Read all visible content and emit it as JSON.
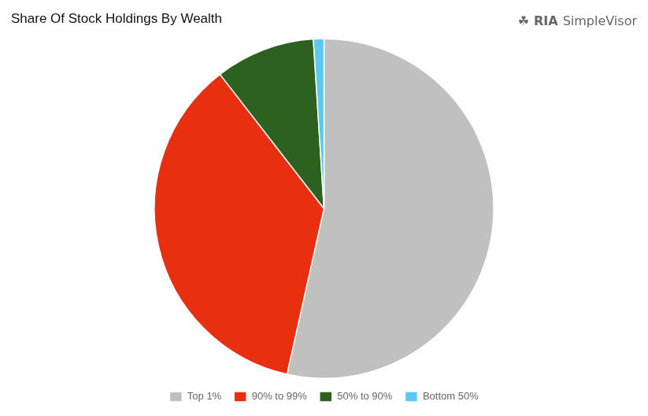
{
  "chart_data": {
    "type": "pie",
    "title": "Share Of Stock Holdings By Wealth",
    "categories": [
      "Top 1%",
      "90% to 99%",
      "50% to 90%",
      "Bottom 50%"
    ],
    "values": [
      53.5,
      36.0,
      9.5,
      1.0
    ],
    "colors": [
      "#c0c0c0",
      "#e83010",
      "#2d6120",
      "#5bc8f0"
    ],
    "legend": "bottom",
    "annotations": [
      "☘",
      "RIA",
      "SimpleVisor"
    ]
  }
}
